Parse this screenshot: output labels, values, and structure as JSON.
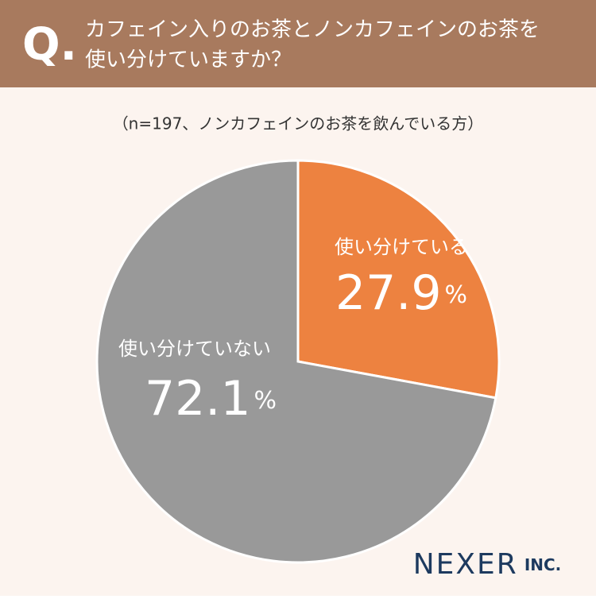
{
  "badge": "Q.",
  "logo": {
    "name": "NEXER",
    "suffix": "INC."
  },
  "chart_data": {
    "type": "pie",
    "title": [
      "カフェイン入りのお茶とノンカフェインのお茶を",
      "使い分けていますか？"
    ],
    "subtitle": "（n=197、ノンカフェインのお茶を飲んでいる方）",
    "categories": [
      "使い分けている",
      "使い分けていない"
    ],
    "values": [
      27.9,
      72.1
    ],
    "unit": "%",
    "colors": [
      "#ed8240",
      "#999999"
    ]
  }
}
